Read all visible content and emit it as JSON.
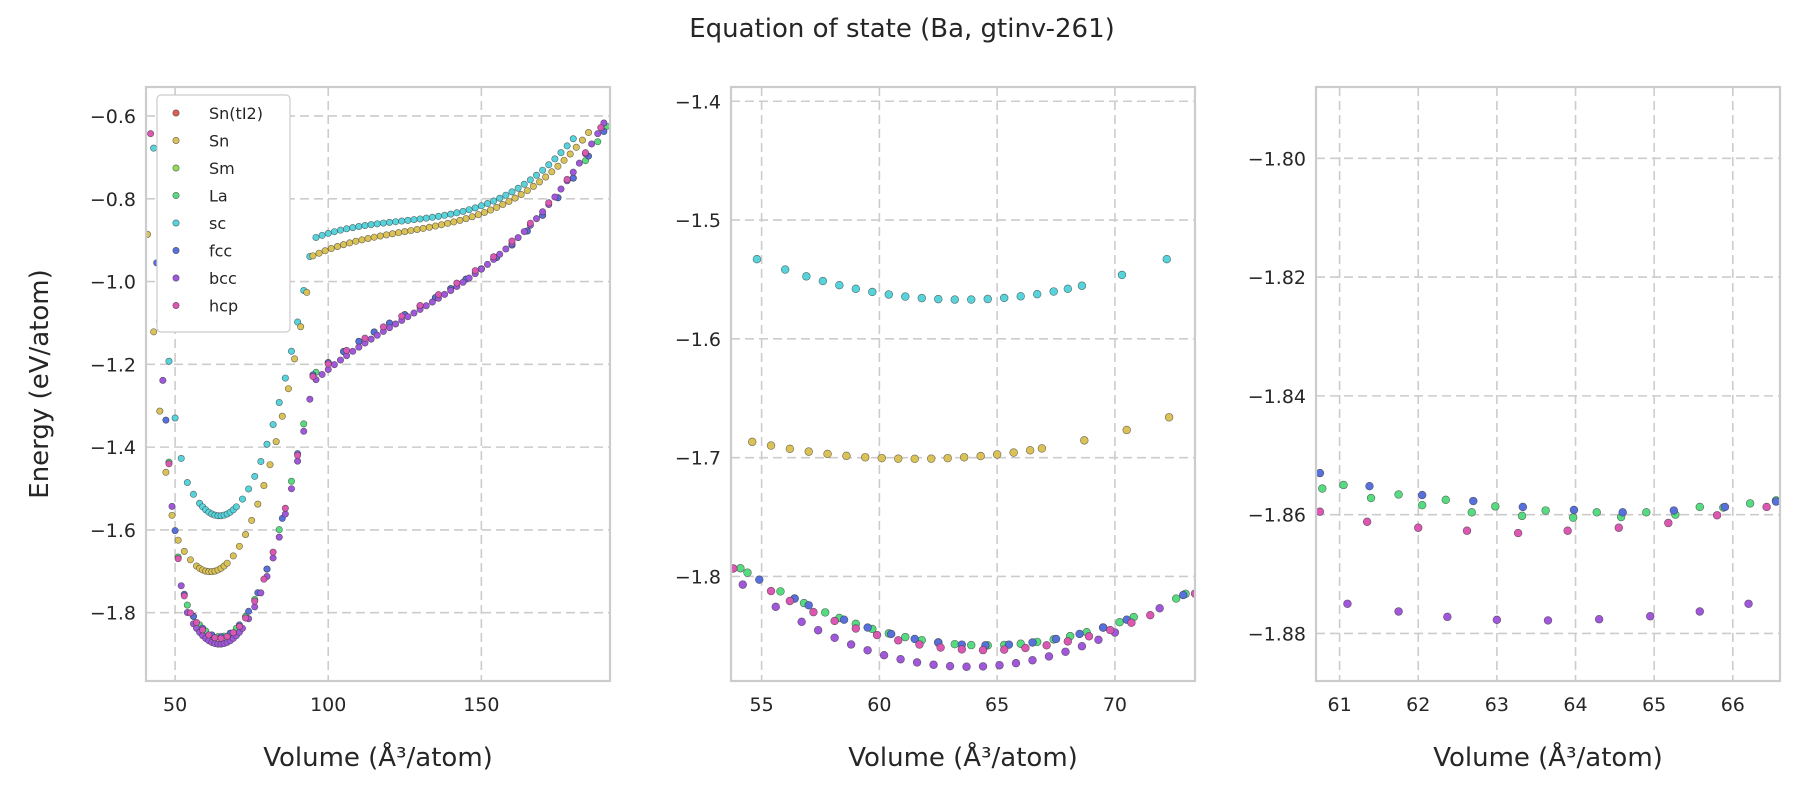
{
  "chart_data": {
    "title": "Equation of state (Ba, gtinv-261)",
    "legend": [
      "Sn(tI2)",
      "Sn",
      "Sm",
      "La",
      "sc",
      "fcc",
      "bcc",
      "hcp"
    ],
    "colors": {
      "Sn(tI2)": "#db5f57",
      "Sn": "#dbc257",
      "Sm": "#91db57",
      "La": "#57db80",
      "sc": "#57d3db",
      "fcc": "#5770db",
      "bcc": "#a157db",
      "hcp": "#db57b2"
    },
    "panels": [
      {
        "type": "scatter",
        "xlabel": "Volume (Å³/atom)",
        "ylabel": "Energy (eV/atom)",
        "xlim": [
          40.5,
          192
        ],
        "ylim": [
          -1.965,
          -0.53
        ],
        "xticks": [
          50,
          100,
          150
        ],
        "xticklabels": [
          "50",
          "100",
          "150"
        ],
        "yticks": [
          -1.8,
          -1.6,
          -1.4,
          -1.2,
          -1.0,
          -0.8,
          -0.6
        ],
        "yticklabels": [
          "−1.8",
          "−1.6",
          "−1.4",
          "−1.2",
          "−1.0",
          "−0.8",
          "−0.6"
        ],
        "legend_loc": "upper left",
        "marker_r": 3.2,
        "series": [
          {
            "name": "sc",
            "curve": {
              "e0": -1.566,
              "v0": 64.5,
              "b": 0.00072,
              "vr": 95,
              "vm": 180,
              "em": -0.655,
              "u": 0.0042
            },
            "x": [
              43,
              46,
              48,
              50,
              52,
              54,
              56,
              58,
              59,
              60,
              61,
              62,
              63,
              64,
              65,
              66,
              67,
              68,
              69,
              70,
              72,
              74,
              76,
              78,
              80,
              82,
              84,
              86,
              88,
              90,
              92,
              94,
              96,
              98,
              100,
              102,
              104,
              106,
              108,
              110,
              112,
              114,
              116,
              118,
              120,
              122,
              124,
              126,
              128,
              130,
              132,
              134,
              136,
              138,
              140,
              142,
              144,
              146,
              148,
              150,
              152,
              154,
              156,
              158,
              160,
              162,
              164,
              166,
              168,
              170,
              172,
              174,
              176,
              178,
              180
            ]
          },
          {
            "name": "Sn",
            "curve": {
              "e0": -1.701,
              "v0": 61.5,
              "b": 0.00068,
              "vr": 95,
              "vm": 185,
              "em": -0.64,
              "u": 0.0048
            },
            "x": [
              41,
              43,
              45,
              47,
              49,
              51,
              53,
              55,
              57,
              58,
              59,
              60,
              61,
              62,
              63,
              64,
              65,
              66,
              67,
              69,
              71,
              73,
              75,
              77,
              79,
              81,
              83,
              85,
              87,
              89,
              91,
              93,
              95,
              97,
              99,
              101,
              103,
              105,
              107,
              109,
              111,
              113,
              115,
              117,
              119,
              121,
              123,
              125,
              127,
              129,
              131,
              133,
              135,
              137,
              139,
              141,
              143,
              145,
              147,
              149,
              151,
              153,
              155,
              157,
              159,
              161,
              163,
              165,
              167,
              169,
              171,
              173,
              175,
              177,
              179,
              181,
              183,
              185
            ]
          },
          {
            "name": "La",
            "curve": {
              "e0": -1.858,
              "v0": 64.5,
              "b": 0.00068,
              "vr": 95,
              "vm": 191,
              "em": -0.625,
              "u": 0.0056
            },
            "x": [
              45,
              48,
              51,
              54,
              56,
              58,
              60,
              62,
              64,
              66,
              68,
              70,
              73,
              76,
              80,
              84,
              88,
              92,
              96,
              100,
              105,
              110,
              115,
              120,
              125,
              130,
              135,
              140,
              145,
              150,
              155,
              160,
              165,
              170,
              175,
              180,
              184,
              188,
              191
            ]
          },
          {
            "name": "fcc",
            "curve": {
              "e0": -1.858,
              "v0": 64.5,
              "b": 0.00068,
              "vr": 95,
              "vm": 191,
              "em": -0.625,
              "u": 0.0056
            },
            "x": [
              44,
              47,
              50,
              53,
              56,
              59,
              62,
              65,
              68,
              71,
              74,
              77,
              80,
              85,
              90,
              95,
              100,
              105,
              110,
              115,
              120,
              125,
              130,
              135,
              140,
              145,
              150,
              155,
              160,
              165,
              170,
              175,
              180,
              185,
              190
            ]
          },
          {
            "name": "bcc",
            "curve": {
              "e0": -1.876,
              "v0": 64.5,
              "b": 0.00068,
              "vr": 95,
              "vm": 189,
              "em": -0.63,
              "u": 0.0056
            },
            "x": [
              46,
              49,
              52,
              54,
              56,
              57,
              58,
              59,
              60,
              61,
              62,
              63,
              64,
              65,
              66,
              67,
              68,
              69,
              70,
              71,
              72,
              74,
              76,
              78,
              80,
              82,
              84,
              86,
              88,
              90,
              92,
              94,
              96,
              98,
              100,
              102,
              104,
              106,
              108,
              110,
              112,
              114,
              116,
              118,
              120,
              122,
              124,
              126,
              128,
              130,
              132,
              134,
              136,
              138,
              140,
              142,
              144,
              146,
              148,
              150,
              152,
              154,
              156,
              158,
              160,
              162,
              164,
              166,
              168,
              170,
              172,
              174,
              176,
              178,
              180,
              182,
              184,
              186,
              188,
              190
            ]
          },
          {
            "name": "hcp",
            "curve": {
              "e0": -1.862,
              "v0": 64.5,
              "b": 0.00068,
              "vr": 95,
              "vm": 189,
              "em": -0.628,
              "u": 0.0056
            },
            "x": [
              42,
              45,
              48,
              51,
              53,
              55,
              57,
              59,
              61,
              63,
              65,
              67,
              69,
              71,
              73,
              76,
              79,
              82,
              86,
              90,
              95,
              100,
              106,
              112,
              118,
              124,
              130,
              136,
              142,
              148,
              154,
              160,
              166,
              172,
              178,
              184,
              189
            ]
          }
        ]
      },
      {
        "type": "scatter",
        "xlabel": "Volume (Å³/atom)",
        "ylabel": "",
        "xlim": [
          53.7,
          73.4
        ],
        "ylim": [
          -1.888,
          -1.388
        ],
        "xticks": [
          55,
          60,
          65,
          70
        ],
        "xticklabels": [
          "55",
          "60",
          "65",
          "70"
        ],
        "yticks": [
          -1.8,
          -1.7,
          -1.6,
          -1.5,
          -1.4
        ],
        "yticklabels": [
          "−1.8",
          "−1.7",
          "−1.6",
          "−1.5",
          "−1.4"
        ],
        "marker_r": 3.9,
        "series": [
          {
            "name": "sc",
            "curve": {
              "e0": -1.567,
              "v0": 63.5,
              "b": 0.00045
            },
            "x": [
              54.8,
              56.0,
              56.9,
              57.6,
              58.3,
              59.0,
              59.7,
              60.4,
              61.1,
              61.8,
              62.5,
              63.2,
              63.9,
              64.6,
              65.3,
              66.0,
              66.7,
              67.4,
              68.0,
              68.6,
              70.3,
              72.2
            ]
          },
          {
            "name": "Sn",
            "curve": {
              "e0": -1.701,
              "v0": 61.5,
              "b": 0.0003
            },
            "x": [
              54.6,
              55.4,
              56.2,
              57.0,
              57.8,
              58.6,
              59.4,
              60.1,
              60.8,
              61.5,
              62.2,
              62.9,
              63.6,
              64.3,
              65.0,
              65.7,
              66.4,
              66.9,
              68.7,
              70.5,
              72.3
            ]
          },
          {
            "name": "La",
            "curve": {
              "e0": -1.858,
              "v0": 64.5,
              "b": 0.0006
            },
            "x": [
              54.1,
              54.4,
              55.8,
              56.4,
              56.8,
              57.7,
              58.3,
              59.0,
              59.7,
              60.4,
              61.1,
              61.8,
              62.5,
              63.2,
              63.9,
              64.6,
              65.3,
              66.0,
              66.7,
              67.4,
              68.1,
              68.8,
              69.5,
              70.2,
              70.8,
              72.6,
              73.0
            ]
          },
          {
            "name": "fcc",
            "curve": {
              "e0": -1.858,
              "v0": 64.5,
              "b": 0.0006
            },
            "x": [
              54.9,
              56.4,
              57.0,
              58.5,
              59.5,
              60.5,
              61.5,
              62.5,
              63.5,
              64.5,
              65.5,
              66.5,
              67.5,
              68.5,
              69.5,
              70.5,
              72.9
            ]
          },
          {
            "name": "bcc",
            "curve": {
              "e0": -1.876,
              "v0": 63.8,
              "b": 0.00075
            },
            "x": [
              54.2,
              55.6,
              56.7,
              57.4,
              58.1,
              58.8,
              59.5,
              60.2,
              60.9,
              61.6,
              62.3,
              63.0,
              63.7,
              64.4,
              65.1,
              65.8,
              66.5,
              67.2,
              67.9,
              68.6,
              69.3,
              70.0,
              71.9
            ]
          },
          {
            "name": "hcp",
            "curve": {
              "e0": -1.862,
              "v0": 64.5,
              "b": 0.0006
            },
            "x": [
              53.8,
              55.4,
              56.2,
              57.2,
              58.1,
              59.0,
              59.9,
              60.8,
              61.7,
              62.6,
              63.5,
              64.4,
              65.3,
              66.2,
              67.1,
              68.0,
              68.9,
              69.8,
              70.7,
              71.5,
              73.4
            ]
          }
        ]
      },
      {
        "type": "scatter",
        "xlabel": "Volume (Å³/atom)",
        "ylabel": "",
        "xlim": [
          60.7,
          66.6
        ],
        "ylim": [
          -1.888,
          -1.788
        ],
        "xticks": [
          61,
          62,
          63,
          64,
          65,
          66
        ],
        "xticklabels": [
          "61",
          "62",
          "63",
          "64",
          "65",
          "66"
        ],
        "yticks": [
          -1.88,
          -1.86,
          -1.84,
          -1.82,
          -1.8
        ],
        "yticklabels": [
          "−1.88",
          "−1.86",
          "−1.84",
          "−1.82",
          "−1.80"
        ],
        "marker_r": 3.9,
        "series": [
          {
            "name": "La",
            "points": [
              [
                60.78,
                -1.8556
              ],
              [
                61.05,
                -1.855
              ],
              [
                61.4,
                -1.8572
              ],
              [
                61.75,
                -1.8566
              ],
              [
                62.05,
                -1.8584
              ],
              [
                62.35,
                -1.8575
              ],
              [
                62.68,
                -1.8596
              ],
              [
                62.98,
                -1.8586
              ],
              [
                63.32,
                -1.8602
              ],
              [
                63.62,
                -1.8593
              ],
              [
                63.97,
                -1.8605
              ],
              [
                64.27,
                -1.8596
              ],
              [
                64.58,
                -1.8604
              ],
              [
                64.9,
                -1.8596
              ],
              [
                65.27,
                -1.86
              ],
              [
                65.58,
                -1.8587
              ],
              [
                65.88,
                -1.8588
              ],
              [
                66.22,
                -1.8581
              ],
              [
                66.55,
                -1.8576
              ]
            ]
          },
          {
            "name": "fcc",
            "points": [
              [
                60.75,
                -1.853
              ],
              [
                61.38,
                -1.8552
              ],
              [
                62.05,
                -1.8567
              ],
              [
                62.7,
                -1.8577
              ],
              [
                63.33,
                -1.8587
              ],
              [
                63.98,
                -1.8592
              ],
              [
                64.6,
                -1.8596
              ],
              [
                65.25,
                -1.8593
              ],
              [
                65.9,
                -1.8587
              ],
              [
                66.55,
                -1.8578
              ]
            ]
          },
          {
            "name": "hcp",
            "points": [
              [
                60.75,
                -1.8595
              ],
              [
                61.35,
                -1.8612
              ],
              [
                62.0,
                -1.8622
              ],
              [
                62.62,
                -1.8627
              ],
              [
                63.27,
                -1.8631
              ],
              [
                63.9,
                -1.8627
              ],
              [
                64.55,
                -1.8622
              ],
              [
                65.18,
                -1.8614
              ],
              [
                65.8,
                -1.8601
              ],
              [
                66.43,
                -1.8587
              ]
            ]
          },
          {
            "name": "bcc",
            "points": [
              [
                61.1,
                -1.875
              ],
              [
                61.75,
                -1.8763
              ],
              [
                62.37,
                -1.8772
              ],
              [
                63.0,
                -1.8777
              ],
              [
                63.65,
                -1.8778
              ],
              [
                64.3,
                -1.8776
              ],
              [
                64.95,
                -1.8771
              ],
              [
                65.58,
                -1.8763
              ],
              [
                66.2,
                -1.875
              ]
            ]
          }
        ]
      }
    ]
  }
}
